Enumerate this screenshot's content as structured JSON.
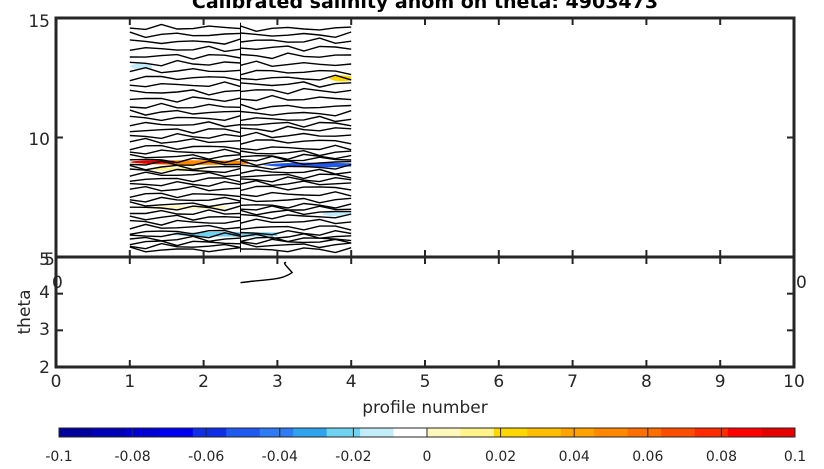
{
  "chart_data": [
    {
      "type": "heatmap",
      "panel": "upper",
      "title": "Calibrated salinity anom on theta: 4903473",
      "xlim": [
        0,
        10
      ],
      "ylim": [
        5,
        15
      ],
      "ytick_labels": [
        "5",
        "10",
        "15"
      ],
      "x_data_extent": [
        1,
        4
      ],
      "section_split_x": 2.5,
      "contour_levels_theta": [
        5.3,
        5.45,
        5.6,
        5.75,
        5.9,
        6.05,
        6.25,
        6.45,
        6.65,
        6.85,
        7.05,
        7.2,
        7.4,
        7.6,
        7.85,
        8.05,
        8.25,
        8.45,
        8.6,
        8.75,
        8.9,
        9.05,
        9.2,
        9.4,
        9.6,
        9.85,
        10.05,
        10.3,
        10.55,
        10.8,
        11.05,
        11.3,
        11.6,
        11.9,
        12.2,
        12.5,
        12.8,
        13.1,
        13.4,
        13.7,
        14.0,
        14.3,
        14.6
      ],
      "anomaly_patches": [
        {
          "x": [
            1.0,
            1.3
          ],
          "theta": [
            12.85,
            13.1
          ],
          "value": -0.01
        },
        {
          "x": [
            3.7,
            4.0
          ],
          "theta": [
            12.35,
            12.6
          ],
          "value": 0.02
        },
        {
          "x": [
            1.0,
            2.6
          ],
          "theta": [
            8.85,
            9.05
          ],
          "value": 0.05
        },
        {
          "x": [
            1.0,
            1.6
          ],
          "theta": [
            8.9,
            9.05
          ],
          "value": 0.1
        },
        {
          "x": [
            2.8,
            4.0
          ],
          "theta": [
            8.75,
            8.95
          ],
          "value": -0.05
        },
        {
          "x": [
            1.2,
            2.0
          ],
          "theta": [
            8.6,
            8.75
          ],
          "value": 0.01
        },
        {
          "x": [
            1.0,
            2.3
          ],
          "theta": [
            7.0,
            7.15
          ],
          "value": 0.005
        },
        {
          "x": [
            3.6,
            4.0
          ],
          "theta": [
            6.7,
            6.9
          ],
          "value": -0.01
        },
        {
          "x": [
            1.5,
            3.0
          ],
          "theta": [
            5.85,
            6.05
          ],
          "value": -0.02
        },
        {
          "x": [
            1.0,
            1.5
          ],
          "theta": [
            6.0,
            6.15
          ],
          "value": -0.005
        }
      ]
    },
    {
      "type": "heatmap",
      "panel": "lower",
      "xlabel": "profile number",
      "ylabel": "theta",
      "xlim": [
        0,
        10
      ],
      "ylim": [
        2,
        5
      ],
      "xtick_labels": [
        "0",
        "1",
        "2",
        "3",
        "4",
        "5",
        "6",
        "7",
        "8",
        "9",
        "10"
      ],
      "ytick_labels": [
        "2",
        "3",
        "4",
        "5"
      ],
      "partial_tick_labels": [
        "5",
        "0",
        "0"
      ],
      "contour_line": {
        "x": [
          2.5,
          3.2
        ],
        "theta": [
          4.3,
          4.85
        ]
      }
    }
  ],
  "colorbar": {
    "tick_labels": [
      "-0.1",
      "-0.08",
      "-0.06",
      "-0.04",
      "-0.02",
      "0",
      "0.02",
      "0.04",
      "0.06",
      "0.08",
      "0.1"
    ],
    "range": [
      -0.1,
      0.1
    ],
    "colors": [
      "#00009c",
      "#0000b8",
      "#0000d4",
      "#0000f0",
      "#0e2ee8",
      "#1e5af0",
      "#2d7cf5",
      "#2fa4ee",
      "#6ed2f0",
      "#c2edf8",
      "#ffffff",
      "#fff8bd",
      "#fff48a",
      "#ffd700",
      "#ffbd00",
      "#ffa200",
      "#ff8800",
      "#ff6e00",
      "#ff4d00",
      "#ff2a00",
      "#ff0000",
      "#e60000"
    ]
  }
}
